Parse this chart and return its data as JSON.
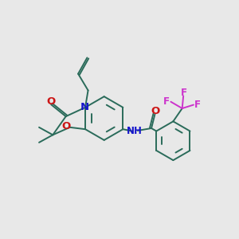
{
  "bg_color": "#e8e8e8",
  "bond_color": "#2a6b5a",
  "N_color": "#1515cc",
  "O_color": "#cc1515",
  "F_color": "#cc33cc",
  "lw": 1.4,
  "figsize": [
    3.0,
    3.0
  ],
  "dpi": 100,
  "xlim": [
    0,
    10
  ],
  "ylim": [
    0,
    10
  ]
}
